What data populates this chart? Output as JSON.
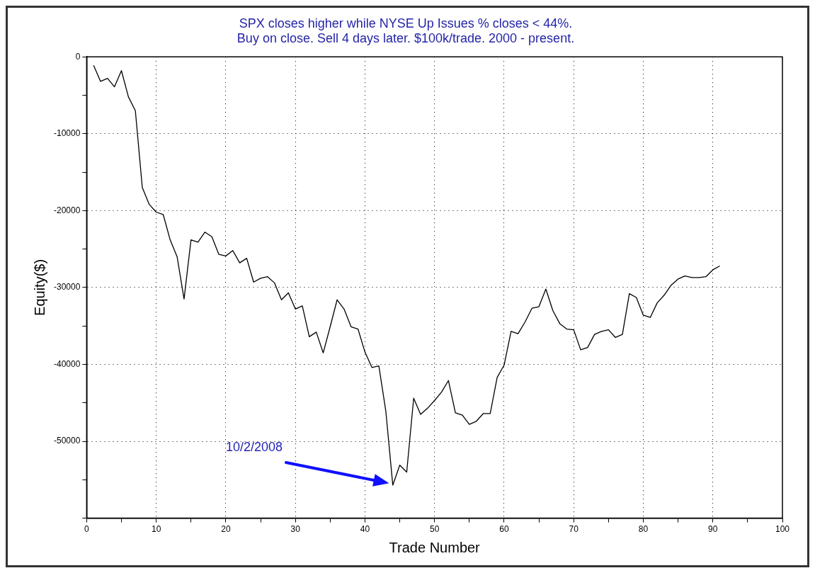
{
  "chart_data": {
    "type": "line",
    "title": [
      "SPX closes higher while NYSE Up Issues % closes < 44%.",
      "Buy on close. Sell 4 days later. $100k/trade. 2000 - present."
    ],
    "xlabel": "Trade Number",
    "ylabel": "Equity($)",
    "x": [
      1,
      2,
      3,
      4,
      5,
      6,
      7,
      8,
      9,
      10,
      11,
      12,
      13,
      14,
      15,
      16,
      17,
      18,
      19,
      20,
      21,
      22,
      23,
      24,
      25,
      26,
      27,
      28,
      29,
      30,
      31,
      32,
      33,
      34,
      35,
      36,
      37,
      38,
      39,
      40,
      41,
      42,
      43,
      44,
      45,
      46,
      47,
      48,
      49,
      50,
      51,
      52,
      53,
      54,
      55,
      56,
      57,
      58,
      59,
      60,
      61,
      62,
      63,
      64,
      65,
      66,
      67,
      68,
      69,
      70,
      71,
      72,
      73,
      74,
      75,
      76,
      77,
      78,
      79,
      80,
      81,
      82,
      83,
      84,
      85,
      86,
      87,
      88,
      89,
      90,
      91
    ],
    "series": [
      {
        "color": "#000000",
        "values": [
          -1100,
          -3200,
          -2800,
          -3900,
          -1800,
          -5200,
          -7000,
          -17000,
          -19200,
          -20200,
          -20500,
          -23800,
          -26000,
          -31500,
          -23800,
          -24100,
          -22800,
          -23400,
          -25700,
          -25900,
          -25200,
          -26800,
          -26200,
          -29300,
          -28800,
          -28600,
          -29400,
          -31600,
          -30700,
          -32800,
          -32400,
          -36400,
          -35800,
          -38500,
          -35100,
          -31600,
          -32800,
          -35100,
          -35400,
          -38400,
          -40400,
          -40200,
          -46100,
          -55700,
          -53100,
          -54000,
          -44400,
          -46500,
          -45700,
          -44700,
          -43600,
          -42100,
          -46300,
          -46600,
          -47800,
          -47400,
          -46400,
          -46400,
          -41700,
          -40100,
          -35700,
          -36000,
          -34500,
          -32700,
          -32500,
          -30200,
          -33000,
          -34700,
          -35400,
          -35500,
          -38100,
          -37800,
          -36100,
          -35700,
          -35500,
          -36500,
          -36100,
          -30800,
          -31300,
          -33600,
          -33900,
          -32000,
          -31000,
          -29700,
          -28900,
          -28500,
          -28700,
          -28700,
          -28600,
          -27700,
          -27200
        ]
      }
    ],
    "xlim": [
      0,
      100
    ],
    "xticks": [
      0,
      {
        "value": 5,
        "label": null
      },
      10,
      {
        "value": 15,
        "label": null
      },
      20,
      {
        "value": 25,
        "label": null
      },
      30,
      {
        "value": 35,
        "label": null
      },
      40,
      {
        "value": 45,
        "label": null
      },
      50,
      {
        "value": 55,
        "label": null
      },
      60,
      {
        "value": 65,
        "label": null
      },
      70,
      {
        "value": 75,
        "label": null
      },
      80,
      {
        "value": 85,
        "label": null
      },
      90,
      {
        "value": 95,
        "label": null
      },
      100
    ],
    "ylim": [
      -60000,
      0
    ],
    "yticks": [
      {
        "value": -60000,
        "label": null
      },
      {
        "value": -55000,
        "label": null
      },
      -50000,
      {
        "value": -45000,
        "label": null
      },
      -40000,
      {
        "value": -35000,
        "label": null
      },
      -30000,
      {
        "value": -25000,
        "label": null
      },
      -20000,
      {
        "value": -15000,
        "label": null
      },
      -10000,
      {
        "value": -5000,
        "label": null
      },
      0
    ],
    "grid": true,
    "legend": false,
    "marker": "none",
    "line_style": "solid",
    "annotations": [
      "10/2/2008"
    ]
  }
}
